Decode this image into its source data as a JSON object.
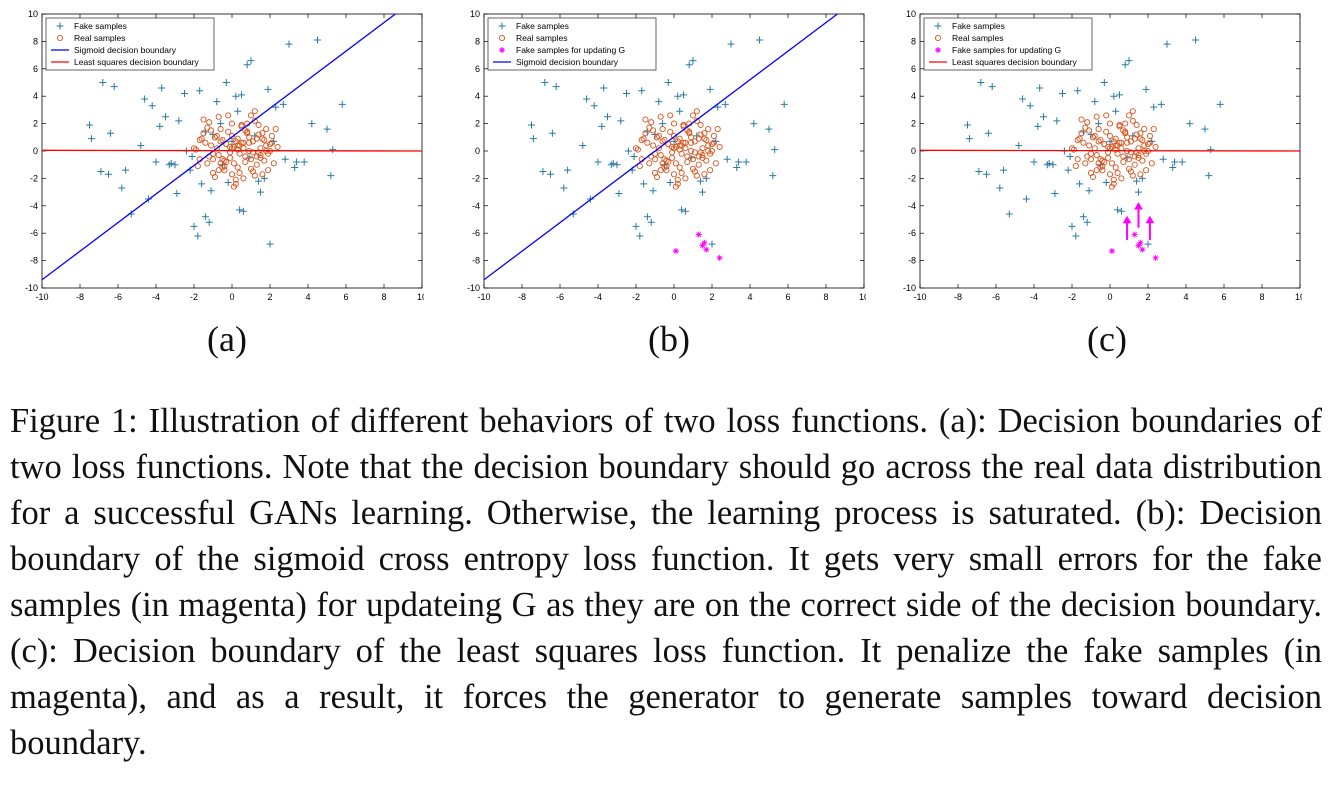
{
  "figure": {
    "panel_labels": [
      "(a)",
      "(b)",
      "(c)"
    ],
    "caption": "Figure 1: Illustration of different behaviors of two loss functions. (a): Decision boundaries of two loss functions. Note that the decision boundary should go across the real data distribution for a successful GANs learning. Otherwise, the learning process is saturated. (b): Decision boundary of the sigmoid cross entropy loss function. It gets very small errors for the fake samples (in magenta) for updateing G as they are on the correct side of the decision boundary. (c): Decision boundary of the least squares loss function. It penalize the fake samples (in magenta), and as a result, it forces the generator to generate samples toward decision boundary."
  },
  "colors": {
    "fake": "#2a7ba1",
    "real": "#d9541e",
    "magenta": "#ff00ff",
    "sigmoid": "#0000ff",
    "least_squares": "#ff0000"
  },
  "chart_data": [
    {
      "type": "scatter",
      "panel": "(a)",
      "xlim": [
        -10,
        10
      ],
      "ylim": [
        -10,
        10
      ],
      "xticks": [
        -10,
        -8,
        -6,
        -4,
        -2,
        0,
        2,
        4,
        6,
        8,
        10
      ],
      "yticks": [
        10,
        8,
        6,
        4,
        2,
        0,
        -2,
        -4,
        -6,
        -8,
        -10
      ],
      "legend": [
        "Fake samples",
        "Real samples",
        "Sigmoid decision boundary",
        "Least squares decision boundary"
      ],
      "lines": [
        {
          "name": "Sigmoid decision boundary",
          "x": [
            -10,
            8.6
          ],
          "y": [
            -9.4,
            10
          ]
        },
        {
          "name": "Least squares decision boundary",
          "x": [
            -10,
            10
          ],
          "y": [
            0.05,
            0
          ]
        }
      ],
      "magenta_points": [],
      "arrows": []
    },
    {
      "type": "scatter",
      "panel": "(b)",
      "xlim": [
        -10,
        10
      ],
      "ylim": [
        -10,
        10
      ],
      "xticks": [
        -10,
        -8,
        -6,
        -4,
        -2,
        0,
        2,
        4,
        6,
        8,
        10
      ],
      "yticks": [
        10,
        8,
        6,
        4,
        2,
        0,
        -2,
        -4,
        -6,
        -8,
        -10
      ],
      "legend": [
        "Fake samples",
        "Real samples",
        "Fake samples for updating G",
        "Sigmoid decision boundary"
      ],
      "lines": [
        {
          "name": "Sigmoid decision boundary",
          "x": [
            -10,
            8.6
          ],
          "y": [
            -9.4,
            10
          ]
        }
      ],
      "magenta_points": {
        "x": [
          0.1,
          1.3,
          1.5,
          1.7,
          2.4,
          1.6
        ],
        "y": [
          -7.3,
          -6.1,
          -6.9,
          -7.2,
          -7.8,
          -6.7
        ]
      },
      "arrows": []
    },
    {
      "type": "scatter",
      "panel": "(c)",
      "xlim": [
        -10,
        10
      ],
      "ylim": [
        -10,
        10
      ],
      "xticks": [
        -10,
        -8,
        -6,
        -4,
        -2,
        0,
        2,
        4,
        6,
        8,
        10
      ],
      "yticks": [
        10,
        8,
        6,
        4,
        2,
        0,
        -2,
        -4,
        -6,
        -8,
        -10
      ],
      "legend": [
        "Fake samples",
        "Real samples",
        "Fake samples for updating G",
        "Least squares decision boundary"
      ],
      "lines": [
        {
          "name": "Least squares decision boundary",
          "x": [
            -10,
            10
          ],
          "y": [
            0.05,
            0
          ]
        }
      ],
      "magenta_points": {
        "x": [
          0.1,
          1.3,
          1.5,
          1.7,
          2.4,
          1.6
        ],
        "y": [
          -7.3,
          -6.1,
          -6.9,
          -7.2,
          -7.8,
          -6.7
        ]
      },
      "arrows": [
        {
          "x": 0.9,
          "y_from": -6.5,
          "y_to": -4.8
        },
        {
          "x": 1.5,
          "y_from": -5.6,
          "y_to": -3.8
        },
        {
          "x": 2.1,
          "y_from": -6.5,
          "y_to": -4.8
        }
      ]
    }
  ],
  "fake_samples": {
    "x": [
      -7.5,
      -7.4,
      -6.8,
      -6.5,
      -6.2,
      -5.8,
      -5.3,
      -4.8,
      -4.2,
      -4.0,
      -3.7,
      -3.5,
      -3.2,
      -3.0,
      -2.8,
      -2.5,
      -2.2,
      -2.0,
      -1.8,
      -1.6,
      -1.4,
      -1.2,
      -1.0,
      -0.8,
      -0.5,
      -0.3,
      0.0,
      0.3,
      0.5,
      0.8,
      1.0,
      1.2,
      1.5,
      1.7,
      2.0,
      2.3,
      2.7,
      3.0,
      3.3,
      3.8,
      4.2,
      4.5,
      5.0,
      5.2,
      5.8,
      -6.9,
      -6.4,
      -5.6,
      -4.4,
      -3.8,
      -2.9,
      -2.4,
      -1.7,
      -1.1,
      -0.6,
      0.2,
      0.9,
      1.4,
      2.2,
      2.8,
      -0.2,
      0.6,
      -3.3,
      -4.6,
      1.9,
      -1.4,
      0.4,
      -2.1,
      3.4,
      5.3
    ],
    "y": [
      1.9,
      0.9,
      5.0,
      -1.7,
      4.7,
      -2.7,
      -4.6,
      0.4,
      3.3,
      -0.8,
      4.6,
      2.5,
      -0.9,
      -1.0,
      2.2,
      4.2,
      -1.4,
      -5.5,
      -6.2,
      -2.4,
      -4.8,
      -5.2,
      1.2,
      3.6,
      -1.0,
      5.0,
      0.7,
      2.9,
      4.1,
      6.3,
      6.6,
      1.1,
      -3.0,
      -2.0,
      -6.8,
      3.2,
      3.4,
      7.8,
      -1.2,
      -0.8,
      2.0,
      8.1,
      1.6,
      -1.8,
      3.4,
      -1.5,
      1.3,
      -1.4,
      -3.5,
      1.8,
      -3.1,
      0.0,
      4.4,
      -2.9,
      2.0,
      4.0,
      -0.5,
      -2.2,
      0.7,
      -0.6,
      -2.3,
      -4.4,
      -1.0,
      3.8,
      4.5,
      1.4,
      -4.3,
      -0.4,
      -0.8,
      0.1
    ]
  },
  "real_samples": {
    "x": [
      -1.9,
      -1.7,
      -1.5,
      -1.4,
      -1.3,
      -1.2,
      -1.1,
      -1.0,
      -0.9,
      -0.8,
      -0.7,
      -0.6,
      -0.5,
      -0.4,
      -0.3,
      -0.2,
      -0.1,
      0.0,
      0.1,
      0.2,
      0.3,
      0.4,
      0.5,
      0.6,
      0.7,
      0.8,
      0.9,
      1.0,
      1.1,
      1.2,
      1.3,
      1.4,
      1.5,
      1.6,
      1.7,
      1.8,
      1.9,
      2.0,
      2.1,
      2.2,
      -1.8,
      -1.6,
      -1.0,
      -0.7,
      -0.4,
      -0.1,
      0.2,
      0.5,
      0.8,
      1.1,
      1.4,
      1.7,
      -1.3,
      -0.9,
      -0.6,
      -0.3,
      0.0,
      0.3,
      0.6,
      0.9,
      1.2,
      1.5,
      1.8,
      -0.5,
      0.1,
      0.7,
      1.3,
      -1.2,
      -0.2,
      0.4,
      1.0,
      1.6,
      -0.8,
      0.3,
      1.1,
      2.0,
      -1.5,
      -0.6,
      0.5,
      1.4,
      0.0,
      0.8,
      -0.3,
      1.9,
      -1.0,
      0.6,
      2.3,
      -0.4,
      0.2,
      1.2,
      -1.7,
      -0.1,
      0.9,
      1.5,
      -0.7,
      0.4,
      1.8,
      0.1,
      -1.1,
      1.0,
      2.4,
      -0.5,
      0.7,
      -2.0,
      1.6,
      0.3,
      -0.9,
      1.3,
      0.0,
      2.1
    ],
    "y": [
      0.1,
      -0.6,
      1.3,
      0.6,
      -0.9,
      2.1,
      0.4,
      -1.6,
      1.0,
      0.2,
      -0.3,
      1.6,
      0.8,
      -1.1,
      0.5,
      2.6,
      -0.5,
      1.1,
      0.3,
      -2.1,
      0.9,
      -0.2,
      1.8,
      0.6,
      -0.8,
      1.4,
      0.0,
      -1.3,
      0.7,
      2.2,
      -0.4,
      1.2,
      0.2,
      -1.7,
      0.8,
      1.6,
      -0.2,
      0.5,
      1.1,
      -0.9,
      -1.1,
      0.9,
      -0.6,
      2.5,
      -1.4,
      0.3,
      -2.4,
      0.6,
      2.0,
      -0.1,
      1.9,
      -0.7,
      1.7,
      -1.9,
      0.7,
      -0.8,
      2.0,
      -1.2,
      0.2,
      0.6,
      -1.8,
      -0.3,
      0.4,
      -0.6,
      -2.6,
      1.5,
      -1.0,
      -0.4,
      1.4,
      -1.6,
      2.6,
      0.9,
      1.1,
      0.1,
      -1.5,
      0.0,
      2.3,
      -0.9,
      1.9,
      -0.1,
      -1.7,
      1.3,
      0.5,
      -1.4,
      -0.2,
      -2.0,
      1.6,
      -0.7,
      0.7,
      2.9,
      0.8,
      -0.1,
      1.0,
      -0.5,
      -1.4,
      0.4,
      0.0,
      -0.9,
      1.5,
      -0.6,
      0.3,
      -1.2,
      -0.4,
      0.2,
      1.3,
      0.4,
      1.0,
      0.9,
      0.2,
      0.6
    ]
  }
}
